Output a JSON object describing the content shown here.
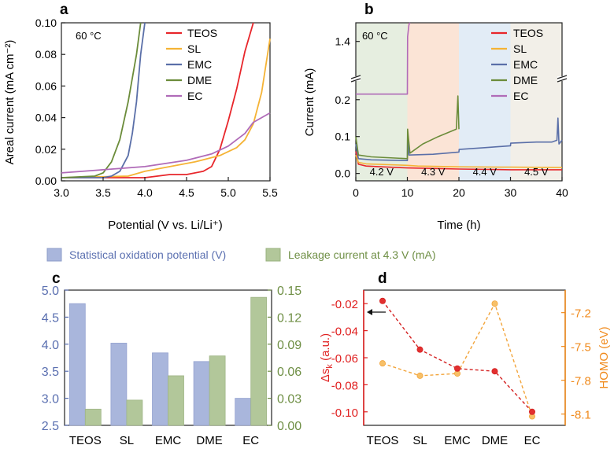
{
  "figure": {
    "legend_c": {
      "bar1": "Statistical oxidation potential (V)",
      "bar2": "Leakage current at 4.3 V (mA)"
    },
    "colors": {
      "TEOS": "#e8262b",
      "SL": "#f5b335",
      "EMC": "#5a6fa8",
      "DME": "#6b8c3a",
      "EC": "#b06bb8",
      "bar_blue": "#a9b6dc",
      "bar_green": "#b2c79a",
      "axis_blue": "#5a6fb0",
      "axis_green": "#6f8f45",
      "red_axis": "#e02020",
      "orange_axis": "#f08a1c"
    }
  },
  "chart_data": [
    {
      "panel": "a",
      "type": "line",
      "annotation": "60 °C",
      "xlabel": "Potential (V vs. Li/Li⁺)",
      "ylabel": "Areal current (mA cm⁻²)",
      "xlim": [
        3.0,
        5.5
      ],
      "ylim": [
        0,
        0.1
      ],
      "xticks": [
        "3.0",
        "3.5",
        "4.0",
        "4.5",
        "5.0",
        "5.5"
      ],
      "yticks": [
        "0.00",
        "0.02",
        "0.04",
        "0.06",
        "0.08",
        "0.10"
      ],
      "legend": [
        "TEOS",
        "SL",
        "EMC",
        "DME",
        "EC"
      ],
      "series": [
        {
          "name": "TEOS",
          "points": [
            [
              3.0,
              0.002
            ],
            [
              3.5,
              0.002
            ],
            [
              4.0,
              0.002
            ],
            [
              4.3,
              0.004
            ],
            [
              4.5,
              0.004
            ],
            [
              4.7,
              0.006
            ],
            [
              4.8,
              0.009
            ],
            [
              4.9,
              0.02
            ],
            [
              5.0,
              0.038
            ],
            [
              5.1,
              0.058
            ],
            [
              5.2,
              0.082
            ],
            [
              5.3,
              0.1
            ]
          ]
        },
        {
          "name": "SL",
          "points": [
            [
              3.0,
              0.002
            ],
            [
              3.8,
              0.003
            ],
            [
              4.0,
              0.006
            ],
            [
              4.3,
              0.009
            ],
            [
              4.6,
              0.012
            ],
            [
              4.9,
              0.016
            ],
            [
              5.1,
              0.021
            ],
            [
              5.2,
              0.026
            ],
            [
              5.3,
              0.036
            ],
            [
              5.4,
              0.056
            ],
            [
              5.5,
              0.09
            ]
          ]
        },
        {
          "name": "EMC",
          "points": [
            [
              3.0,
              0.002
            ],
            [
              3.5,
              0.002
            ],
            [
              3.6,
              0.003
            ],
            [
              3.7,
              0.006
            ],
            [
              3.8,
              0.016
            ],
            [
              3.85,
              0.03
            ],
            [
              3.9,
              0.05
            ],
            [
              3.95,
              0.08
            ],
            [
              4.0,
              0.1
            ]
          ]
        },
        {
          "name": "DME",
          "points": [
            [
              3.0,
              0.002
            ],
            [
              3.4,
              0.003
            ],
            [
              3.5,
              0.005
            ],
            [
              3.6,
              0.012
            ],
            [
              3.7,
              0.026
            ],
            [
              3.8,
              0.05
            ],
            [
              3.9,
              0.08
            ],
            [
              3.95,
              0.1
            ]
          ]
        },
        {
          "name": "EC",
          "points": [
            [
              3.0,
              0.005
            ],
            [
              3.5,
              0.007
            ],
            [
              4.0,
              0.009
            ],
            [
              4.5,
              0.013
            ],
            [
              4.8,
              0.017
            ],
            [
              5.0,
              0.022
            ],
            [
              5.2,
              0.03
            ],
            [
              5.3,
              0.037
            ],
            [
              5.4,
              0.04
            ],
            [
              5.5,
              0.043
            ]
          ]
        }
      ]
    },
    {
      "panel": "b",
      "type": "line",
      "annotation": "60 °C",
      "xlabel": "Time (h)",
      "ylabel": "Current (mA)",
      "xlim": [
        0,
        40
      ],
      "ylim_lower": [
        -0.02,
        0.24
      ],
      "ylim_upper": [
        1.0,
        1.6
      ],
      "xticks": [
        "0",
        "10",
        "20",
        "30",
        "40"
      ],
      "yticks_lower": [
        "0.0",
        "0.1",
        "0.2"
      ],
      "yticks_upper": [
        "1.4"
      ],
      "voltage_steps": [
        "4.2  V",
        "4.3  V",
        "4.4  V",
        "4.5  V"
      ],
      "legend": [
        "TEOS",
        "SL",
        "EMC",
        "DME",
        "EC"
      ],
      "series": [
        {
          "name": "TEOS",
          "points": [
            [
              0,
              0.06
            ],
            [
              0.5,
              0.025
            ],
            [
              2,
              0.02
            ],
            [
              5,
              0.018
            ],
            [
              10,
              0.015
            ],
            [
              20,
              0.012
            ],
            [
              30,
              0.01
            ],
            [
              40,
              0.01
            ]
          ]
        },
        {
          "name": "SL",
          "points": [
            [
              0,
              0.05
            ],
            [
              0.5,
              0.03
            ],
            [
              2,
              0.026
            ],
            [
              10,
              0.022
            ],
            [
              12,
              0.02
            ],
            [
              20,
              0.018
            ],
            [
              30,
              0.017
            ],
            [
              40,
              0.016
            ]
          ]
        },
        {
          "name": "EMC",
          "points": [
            [
              0,
              0.08
            ],
            [
              0.5,
              0.04
            ],
            [
              3,
              0.037
            ],
            [
              10,
              0.035
            ],
            [
              10.05,
              0.1
            ],
            [
              10.3,
              0.05
            ],
            [
              15,
              0.052
            ],
            [
              20,
              0.058
            ],
            [
              20.05,
              0.065
            ],
            [
              25,
              0.07
            ],
            [
              30,
              0.075
            ],
            [
              30.05,
              0.082
            ],
            [
              35,
              0.085
            ],
            [
              38,
              0.085
            ],
            [
              39,
              0.09
            ],
            [
              39.2,
              0.15
            ],
            [
              39.4,
              0.08
            ],
            [
              40,
              0.09
            ]
          ]
        },
        {
          "name": "DME",
          "points": [
            [
              0,
              0.1
            ],
            [
              0.5,
              0.05
            ],
            [
              3,
              0.045
            ],
            [
              10,
              0.04
            ],
            [
              10.05,
              0.12
            ],
            [
              10.5,
              0.055
            ],
            [
              13,
              0.08
            ],
            [
              16,
              0.1
            ],
            [
              19.5,
              0.12
            ],
            [
              19.8,
              0.21
            ],
            [
              20,
              0.12
            ]
          ]
        },
        {
          "name": "EC",
          "points": [
            [
              0,
              0.215
            ],
            [
              10,
              0.215
            ],
            [
              10.05,
              1.45
            ],
            [
              10.3,
              1.58
            ],
            [
              10.5,
              1.6
            ]
          ]
        }
      ]
    },
    {
      "panel": "c",
      "type": "bar",
      "categories": [
        "TEOS",
        "SL",
        "EMC",
        "DME",
        "EC"
      ],
      "series": [
        {
          "name": "Statistical oxidation potential (V)",
          "axis": "left",
          "values": [
            4.75,
            4.02,
            3.84,
            3.68,
            3.0
          ]
        },
        {
          "name": "Leakage current at 4.3 V (mA)",
          "axis": "right",
          "values": [
            0.018,
            0.028,
            0.055,
            0.077,
            0.142
          ]
        }
      ],
      "ylim_left": [
        2.5,
        5.0
      ],
      "ylim_right": [
        0,
        0.15
      ],
      "yticks_left": [
        "2.5",
        "3.0",
        "3.5",
        "4.0",
        "4.5",
        "5.0"
      ],
      "yticks_right": [
        "0.00",
        "0.03",
        "0.06",
        "0.09",
        "0.12",
        "0.15"
      ]
    },
    {
      "panel": "d",
      "type": "line",
      "categories": [
        "TEOS",
        "SL",
        "EMC",
        "DME",
        "EC"
      ],
      "series": [
        {
          "name": "Δs_k",
          "axis": "left",
          "values": [
            -0.018,
            -0.054,
            -0.068,
            -0.07,
            -0.1
          ]
        },
        {
          "name": "HOMO",
          "axis": "right",
          "values": [
            -7.65,
            -7.76,
            -7.74,
            -7.12,
            -8.12
          ]
        }
      ],
      "ylabel_left": "Δs",
      "ylabel_left_sub": "k",
      "ylabel_left_unit": " (a.u.)",
      "ylabel_right": "HOMO (eV)",
      "ylim_left": [
        -0.11,
        -0.01
      ],
      "ylim_right": [
        -8.2,
        -7.0
      ],
      "yticks_left": [
        "-0.02",
        "-0.04",
        "-0.06",
        "-0.08",
        "-0.10"
      ],
      "yticks_right": [
        "-7.2",
        "-7.5",
        "-7.8",
        "-8.1"
      ]
    }
  ],
  "panel_labels": [
    "a",
    "b",
    "c",
    "d"
  ]
}
